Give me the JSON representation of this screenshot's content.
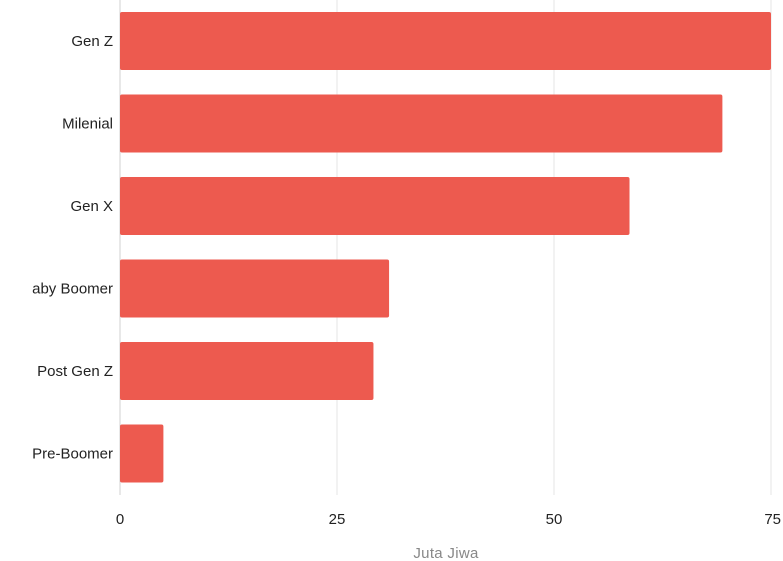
{
  "chart_data": {
    "type": "bar",
    "orientation": "horizontal",
    "categories": [
      "Gen Z",
      "Milenial",
      "Gen X",
      "aby Boomer",
      "Post Gen Z",
      "Pre-Boomer"
    ],
    "values": [
      75,
      69.4,
      58.7,
      31,
      29.2,
      5
    ],
    "xlabel": "Juta Jiwa",
    "ylabel": "",
    "xlim": [
      0,
      75
    ],
    "xticks": [
      0,
      25,
      50,
      75
    ],
    "grid": true,
    "bar_color": "#ed5a4f"
  }
}
